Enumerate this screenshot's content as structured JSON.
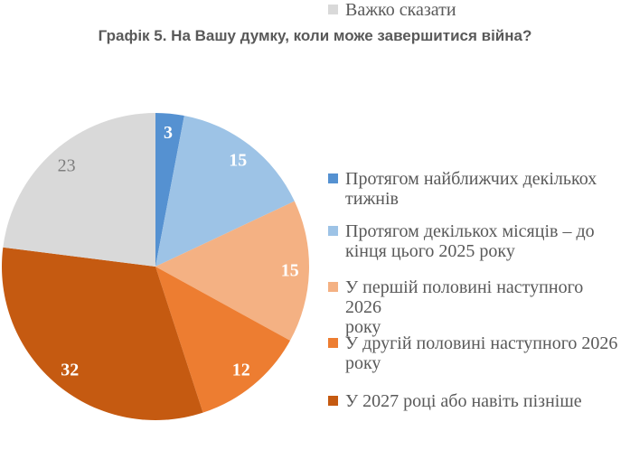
{
  "page": {
    "background": "#FFFFFF"
  },
  "styles": {
    "title_color": "#595959",
    "legend_text_color": "#595959"
  },
  "chart_data": {
    "type": "pie",
    "title": "Графік 5. На Вашу думку, коли може завершитися війна?",
    "total": 100,
    "start_angle_deg": 0,
    "direction": "clockwise",
    "legend_position": "right",
    "slices": [
      {
        "label": "Протягом найближчих декількох\nтижнів",
        "value": 3,
        "color": "#5591D1",
        "label_color": "#FFFFFF",
        "label_bold": true
      },
      {
        "label": "Протягом декількох місяців – до\nкінця цього 2025 року",
        "value": 15,
        "color": "#9DC3E6",
        "label_color": "#FFFFFF",
        "label_bold": true
      },
      {
        "label": "У першій половині наступного 2026\nроку",
        "value": 15,
        "color": "#F4B183",
        "label_color": "#FFFFFF",
        "label_bold": true
      },
      {
        "label": "У другій половині наступного 2026\nроку",
        "value": 12,
        "color": "#ED7D31",
        "label_color": "#FFFFFF",
        "label_bold": true
      },
      {
        "label": "У 2027 році або навіть пізніше",
        "value": 32,
        "color": "#C55A11",
        "label_color": "#FFFFFF",
        "label_bold": true
      },
      {
        "label": "Важко сказати",
        "value": 23,
        "color": "#D9D9D9",
        "label_color": "#7F7F7F",
        "label_bold": false
      }
    ]
  }
}
